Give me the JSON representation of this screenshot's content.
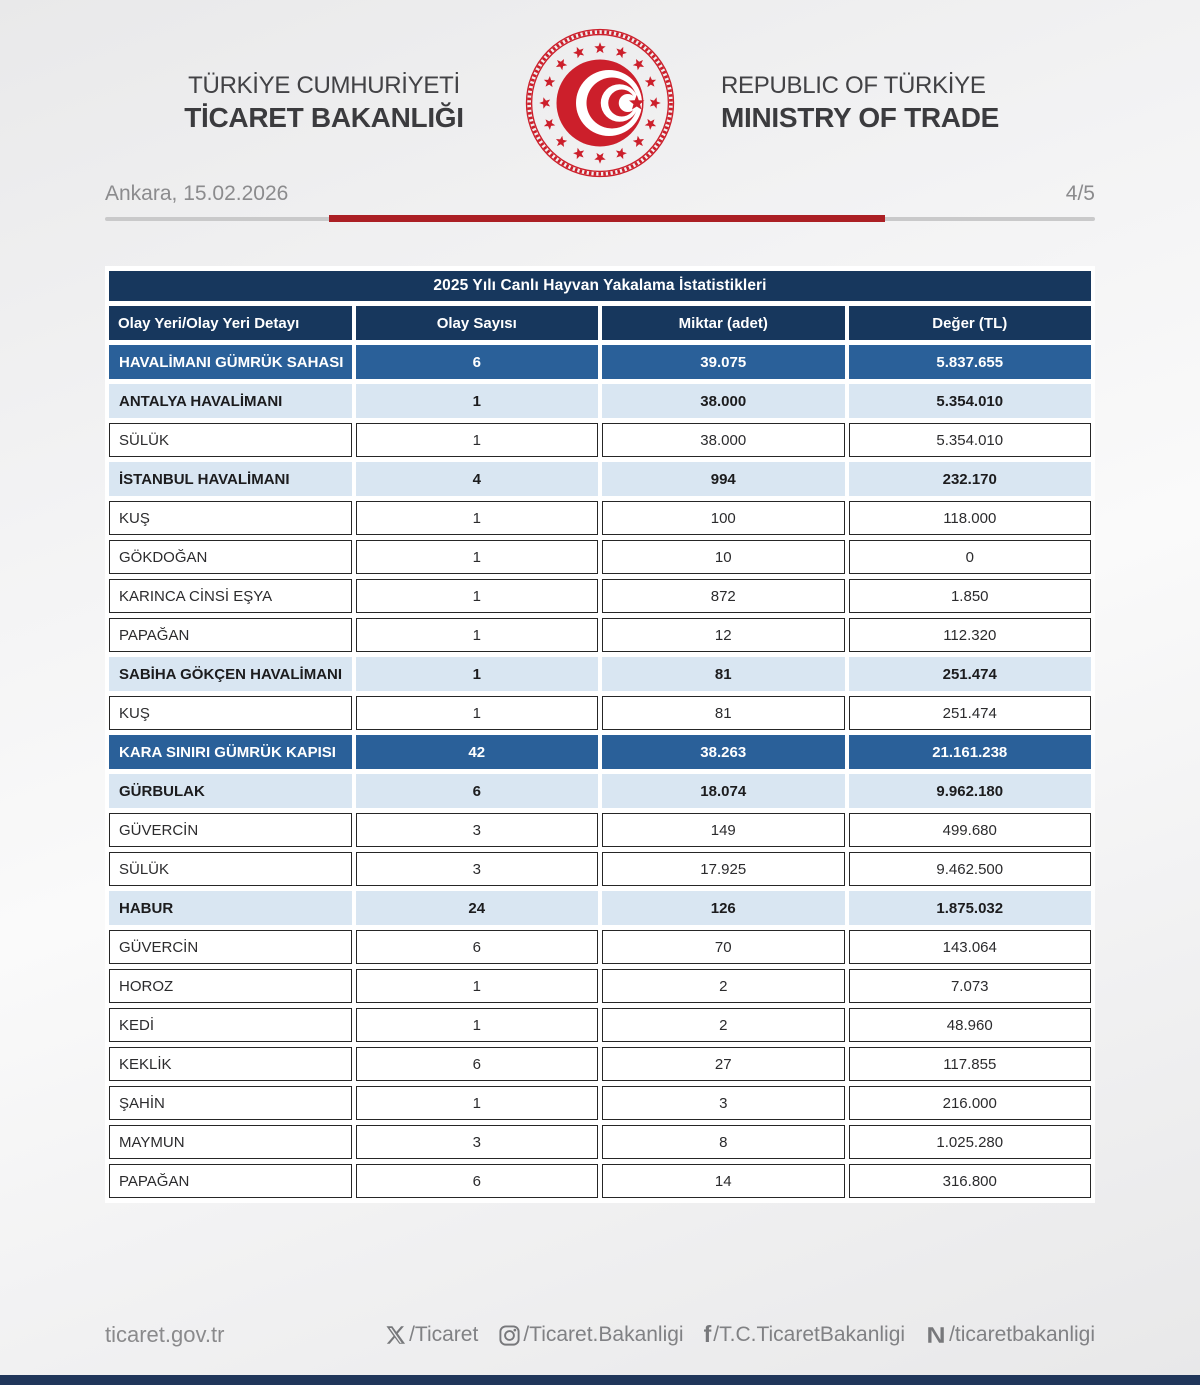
{
  "header": {
    "org_tr_line1": "TÜRKİYE CUMHURİYETİ",
    "org_tr_line2": "TİCARET BAKANLIĞI",
    "org_en_line1": "REPUBLIC OF TÜRKİYE",
    "org_en_line2": "MINISTRY OF TRADE",
    "dateline": "Ankara, 15.02.2026",
    "page_indicator": "4/5"
  },
  "table": {
    "title": "2025 Yılı Canlı Hayvan Yakalama İstatistikleri",
    "columns": [
      "Olay Yeri/Olay Yeri Detayı",
      "Olay Sayısı",
      "Miktar (adet)",
      "Değer (TL)"
    ],
    "rows": [
      {
        "label": "HAVALİMANI GÜMRÜK SAHASI",
        "values": [
          "6",
          "39.075",
          "5.837.655"
        ],
        "style": "section"
      },
      {
        "label": "ANTALYA HAVALİMANI",
        "values": [
          "1",
          "38.000",
          "5.354.010"
        ],
        "style": "subsection"
      },
      {
        "label": "SÜLÜK",
        "values": [
          "1",
          "38.000",
          "5.354.010"
        ],
        "style": "detail"
      },
      {
        "label": "İSTANBUL HAVALİMANI",
        "values": [
          "4",
          "994",
          "232.170"
        ],
        "style": "subsection"
      },
      {
        "label": "KUŞ",
        "values": [
          "1",
          "100",
          "118.000"
        ],
        "style": "detail"
      },
      {
        "label": "GÖKDOĞAN",
        "values": [
          "1",
          "10",
          "0"
        ],
        "style": "detail"
      },
      {
        "label": "KARINCA CİNSİ EŞYA",
        "values": [
          "1",
          "872",
          "1.850"
        ],
        "style": "detail"
      },
      {
        "label": "PAPAĞAN",
        "values": [
          "1",
          "12",
          "112.320"
        ],
        "style": "detail"
      },
      {
        "label": "SABİHA GÖKÇEN HAVALİMANI",
        "values": [
          "1",
          "81",
          "251.474"
        ],
        "style": "subsection"
      },
      {
        "label": "KUŞ",
        "values": [
          "1",
          "81",
          "251.474"
        ],
        "style": "detail"
      },
      {
        "label": "KARA SINIRI GÜMRÜK KAPISI",
        "values": [
          "42",
          "38.263",
          "21.161.238"
        ],
        "style": "section"
      },
      {
        "label": "GÜRBULAK",
        "values": [
          "6",
          "18.074",
          "9.962.180"
        ],
        "style": "subsection"
      },
      {
        "label": "GÜVERCİN",
        "values": [
          "3",
          "149",
          "499.680"
        ],
        "style": "detail"
      },
      {
        "label": "SÜLÜK",
        "values": [
          "3",
          "17.925",
          "9.462.500"
        ],
        "style": "detail"
      },
      {
        "label": "HABUR",
        "values": [
          "24",
          "126",
          "1.875.032"
        ],
        "style": "subsection"
      },
      {
        "label": "GÜVERCİN",
        "values": [
          "6",
          "70",
          "143.064"
        ],
        "style": "detail"
      },
      {
        "label": "HOROZ",
        "values": [
          "1",
          "2",
          "7.073"
        ],
        "style": "detail"
      },
      {
        "label": "KEDİ",
        "values": [
          "1",
          "2",
          "48.960"
        ],
        "style": "detail"
      },
      {
        "label": "KEKLİK",
        "values": [
          "6",
          "27",
          "117.855"
        ],
        "style": "detail"
      },
      {
        "label": "ŞAHİN",
        "values": [
          "1",
          "3",
          "216.000"
        ],
        "style": "detail"
      },
      {
        "label": "MAYMUN",
        "values": [
          "3",
          "8",
          "1.025.280"
        ],
        "style": "detail"
      },
      {
        "label": "PAPAĞAN",
        "values": [
          "6",
          "14",
          "316.800"
        ],
        "style": "detail"
      }
    ]
  },
  "footer": {
    "website": "ticaret.gov.tr",
    "social": [
      {
        "icon": "x-icon",
        "handle": "/Ticaret"
      },
      {
        "icon": "instagram-icon",
        "handle": "/Ticaret.Bakanligi"
      },
      {
        "icon": "facebook-icon",
        "handle": "/T.C.TicaretBakanligi"
      },
      {
        "icon": "nsosyal-icon",
        "handle": "/ticaretbakanligi"
      }
    ]
  },
  "colors": {
    "header_navy": "#17375d",
    "section_blue": "#2a6099",
    "light_blue": "#d9e6f2",
    "accent_red": "#ab1f24",
    "logo_red": "#cc1f2b",
    "text_gray": "#808184"
  }
}
